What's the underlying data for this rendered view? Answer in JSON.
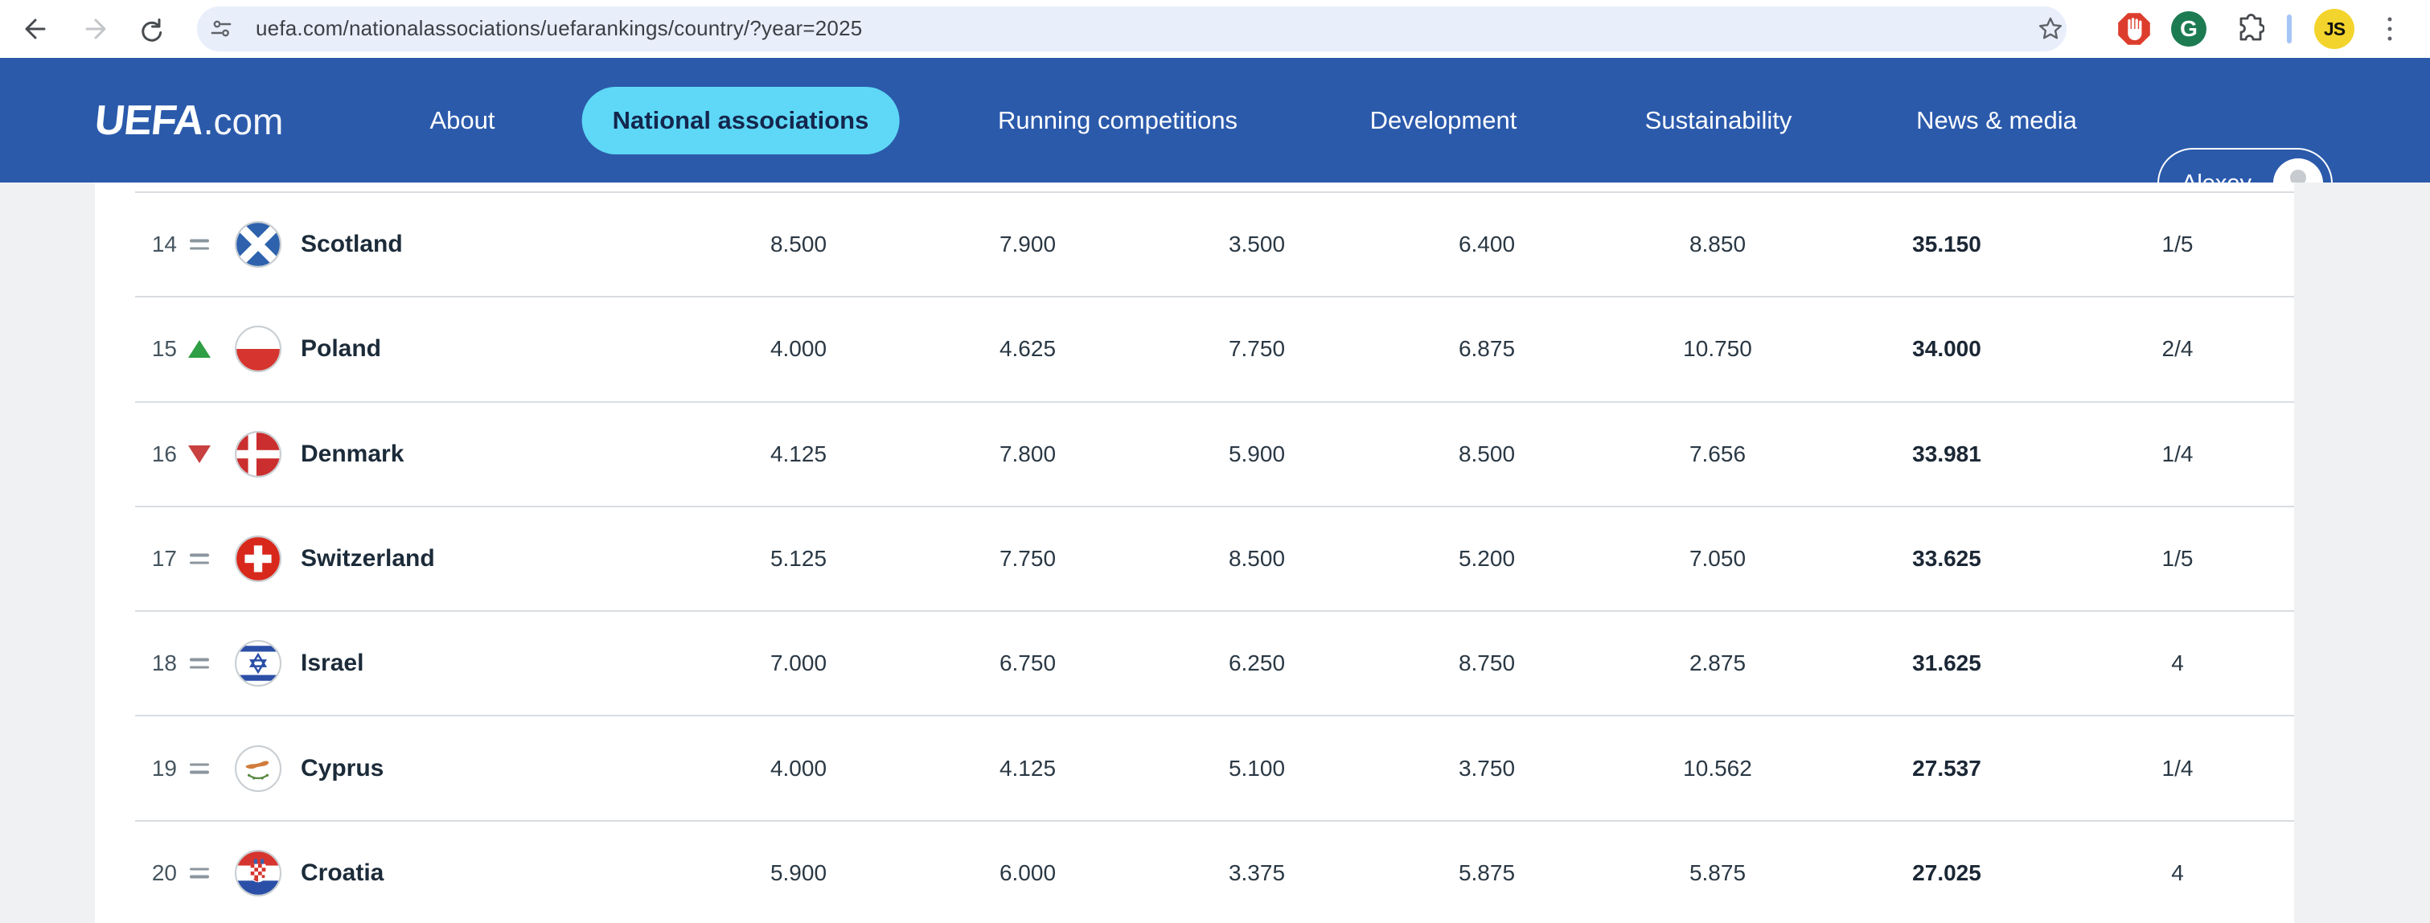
{
  "browser": {
    "url": "uefa.com/nationalassociations/uefarankings/country/?year=2025",
    "profile_initials": "JS"
  },
  "nav": {
    "logo_brand": "UEFA",
    "logo_suffix": ".com",
    "items": [
      {
        "label": "About",
        "active": false
      },
      {
        "label": "National associations",
        "active": true
      },
      {
        "label": "Running competitions",
        "active": false
      },
      {
        "label": "Development",
        "active": false
      },
      {
        "label": "Sustainability",
        "active": false
      },
      {
        "label": "News & media",
        "active": false
      }
    ],
    "user_name": "Alexey"
  },
  "rankings": {
    "rows": [
      {
        "rank": "14",
        "movement": "same",
        "country": "Scotland",
        "flag": "scotland",
        "values": [
          "8.500",
          "7.900",
          "3.500",
          "6.400",
          "8.850"
        ],
        "total": "35.150",
        "matches": "1/5"
      },
      {
        "rank": "15",
        "movement": "up",
        "country": "Poland",
        "flag": "poland",
        "values": [
          "4.000",
          "4.625",
          "7.750",
          "6.875",
          "10.750"
        ],
        "total": "34.000",
        "matches": "2/4"
      },
      {
        "rank": "16",
        "movement": "down",
        "country": "Denmark",
        "flag": "denmark",
        "values": [
          "4.125",
          "7.800",
          "5.900",
          "8.500",
          "7.656"
        ],
        "total": "33.981",
        "matches": "1/4"
      },
      {
        "rank": "17",
        "movement": "same",
        "country": "Switzerland",
        "flag": "switzerland",
        "values": [
          "5.125",
          "7.750",
          "8.500",
          "5.200",
          "7.050"
        ],
        "total": "33.625",
        "matches": "1/5"
      },
      {
        "rank": "18",
        "movement": "same",
        "country": "Israel",
        "flag": "israel",
        "values": [
          "7.000",
          "6.750",
          "6.250",
          "8.750",
          "2.875"
        ],
        "total": "31.625",
        "matches": "4"
      },
      {
        "rank": "19",
        "movement": "same",
        "country": "Cyprus",
        "flag": "cyprus",
        "values": [
          "4.000",
          "4.125",
          "5.100",
          "3.750",
          "10.562"
        ],
        "total": "27.537",
        "matches": "1/4"
      },
      {
        "rank": "20",
        "movement": "same",
        "country": "Croatia",
        "flag": "croatia",
        "values": [
          "5.900",
          "6.000",
          "3.375",
          "5.875",
          "5.875"
        ],
        "total": "27.025",
        "matches": "4"
      }
    ]
  },
  "colors": {
    "nav_blue": "#2b5aab",
    "active_pill": "#5ed8f6",
    "up_green": "#2f9e44",
    "down_red": "#c84040"
  }
}
